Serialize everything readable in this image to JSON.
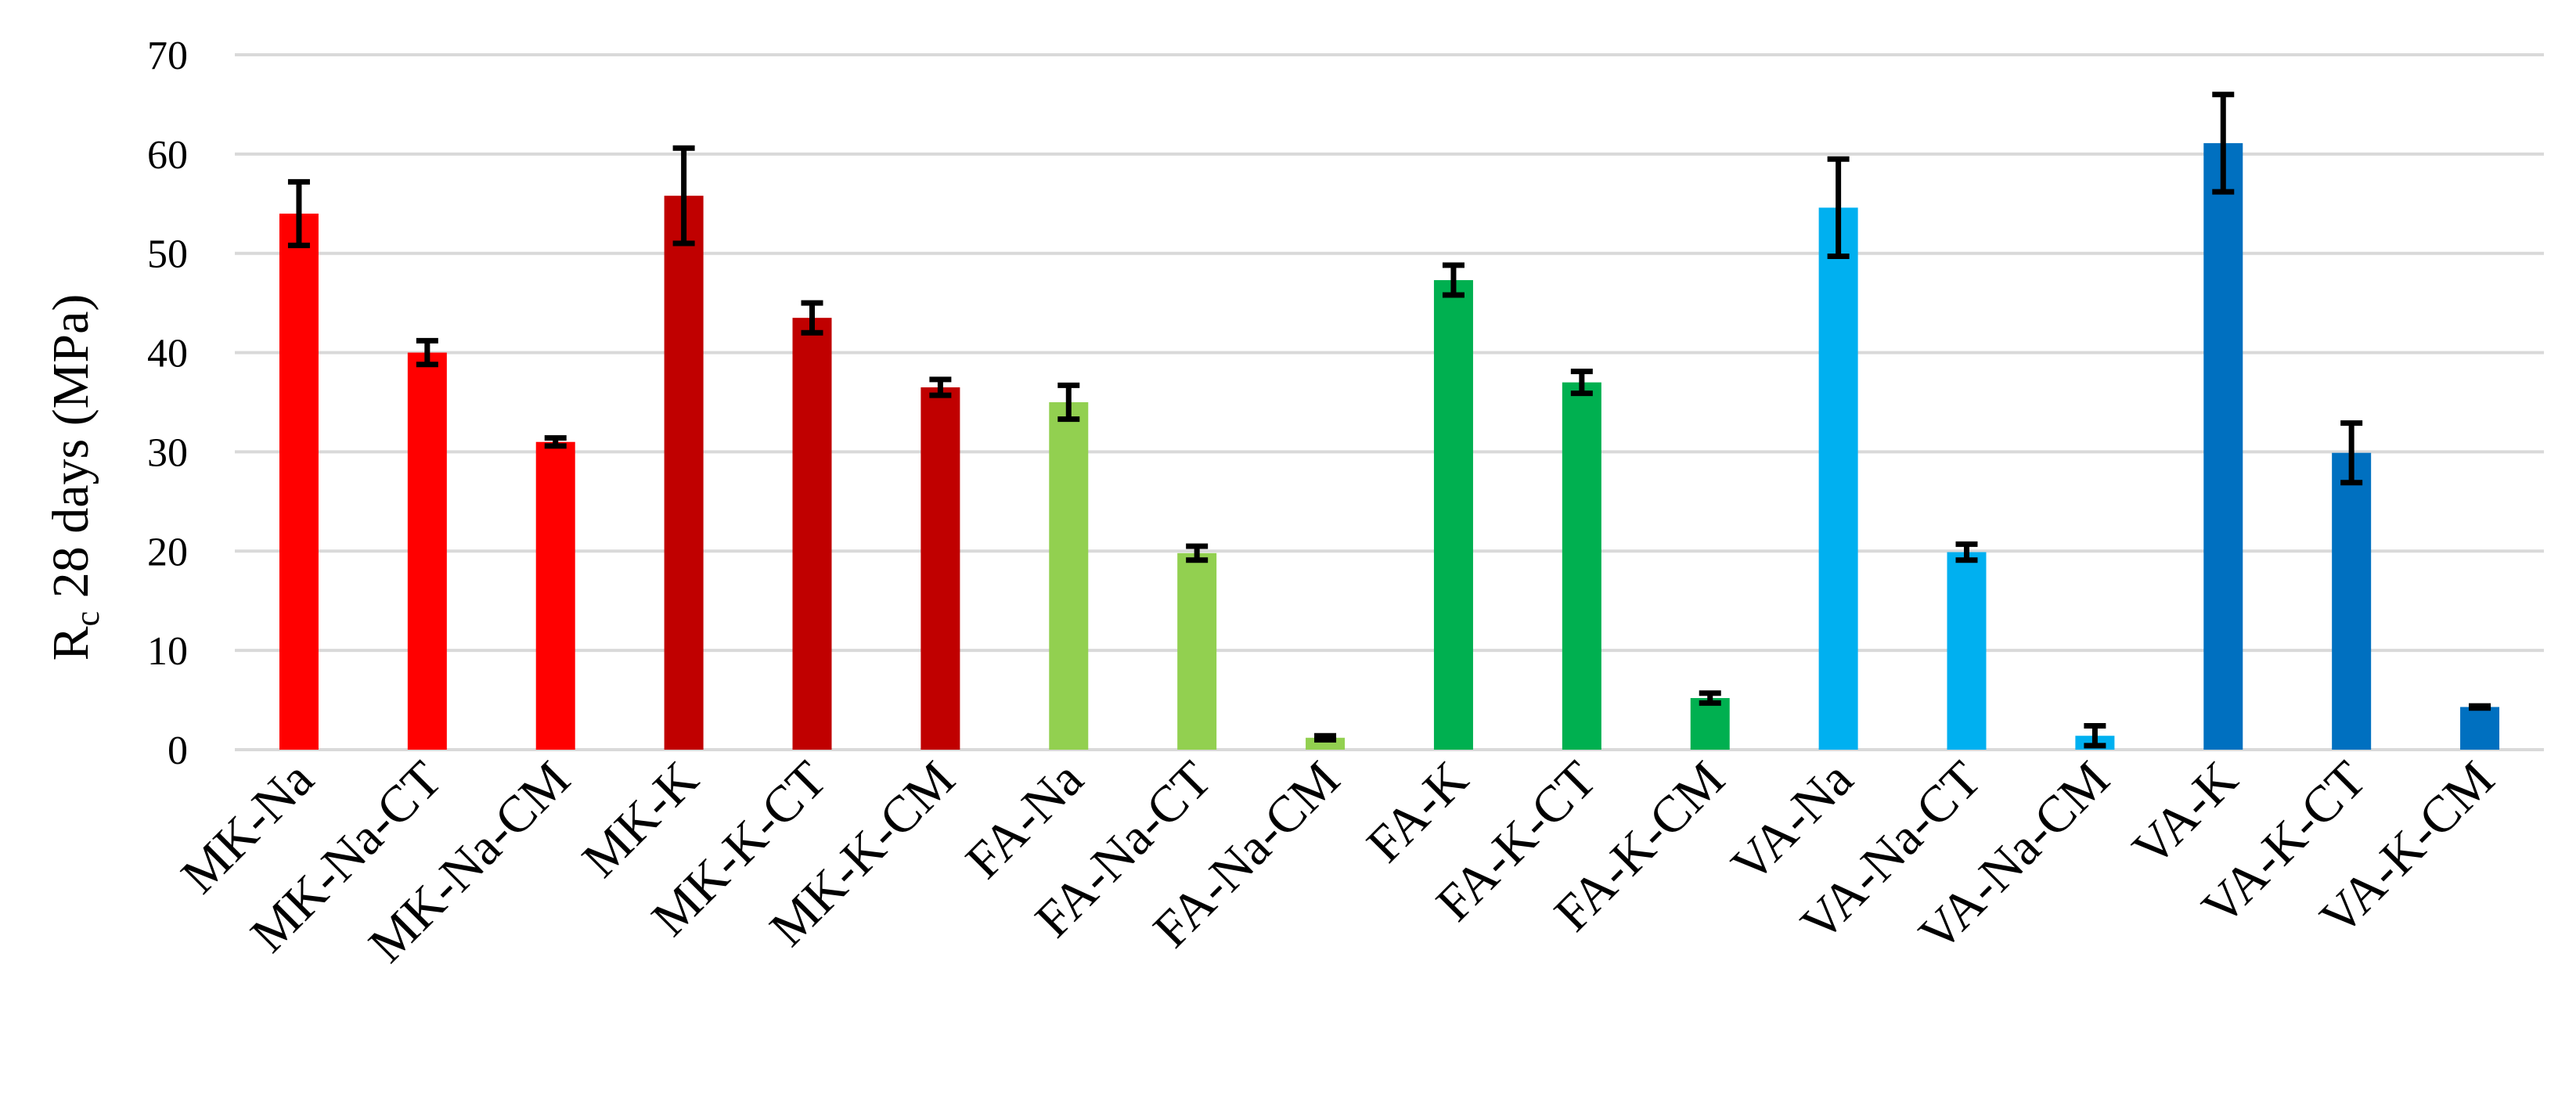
{
  "chart_data": {
    "type": "bar",
    "title": "",
    "xlabel": "",
    "ylabel": {
      "main": "R",
      "sub": "c",
      "rest": " 28 days (MPa)"
    },
    "ylim": [
      0,
      70
    ],
    "yticks": [
      0,
      10,
      20,
      30,
      40,
      50,
      60,
      70
    ],
    "grid": true,
    "legend": "none",
    "categories": [
      "MK-Na",
      "MK-Na-CT",
      "MK-Na-CM",
      "MK-K",
      "MK-K-CT",
      "MK-K-CM",
      "FA-Na",
      "FA-Na-CT",
      "FA-Na-CM",
      "FA-K",
      "FA-K-CT",
      "FA-K-CM",
      "VA-Na",
      "VA-Na-CT",
      "VA-Na-CM",
      "VA-K",
      "VA-K-CT",
      "VA-K-CM"
    ],
    "values": [
      54.0,
      40.0,
      31.0,
      55.8,
      43.5,
      36.5,
      35.0,
      19.8,
      1.2,
      47.3,
      37.0,
      5.2,
      54.6,
      19.9,
      1.4,
      61.1,
      29.9,
      4.3
    ],
    "errors": [
      3.2,
      1.2,
      0.4,
      4.8,
      1.5,
      0.8,
      1.7,
      0.7,
      0.2,
      1.5,
      1.1,
      0.5,
      4.9,
      0.8,
      1.0,
      4.9,
      3.0,
      0.1
    ],
    "colors": [
      "#ff0000",
      "#ff0000",
      "#ff0000",
      "#c00000",
      "#c00000",
      "#c00000",
      "#92d050",
      "#92d050",
      "#92d050",
      "#00b050",
      "#00b050",
      "#00b050",
      "#00b0f0",
      "#00b0f0",
      "#00b0f0",
      "#0070c0",
      "#0070c0",
      "#0070c0"
    ]
  }
}
